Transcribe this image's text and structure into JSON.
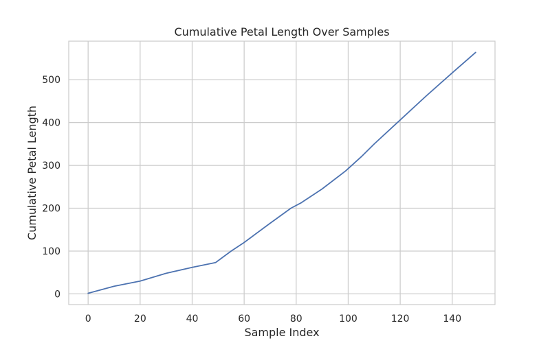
{
  "chart_data": {
    "type": "line",
    "title": "Cumulative Petal Length Over Samples",
    "xlabel": "Sample Index",
    "ylabel": "Cumulative Petal Length",
    "xlim": [
      -7.45,
      156.45
    ],
    "ylim": [
      -25,
      590
    ],
    "x_ticks": [
      0,
      20,
      40,
      60,
      80,
      100,
      120,
      140
    ],
    "y_ticks": [
      0,
      100,
      200,
      300,
      400,
      500
    ],
    "grid": true,
    "colors": {
      "line": "#4c72b0",
      "grid": "#cccccc",
      "axes_edge": "#cccccc",
      "text": "#262626"
    },
    "series": [
      {
        "x": [
          0,
          10,
          20,
          30,
          40,
          49,
          55,
          60,
          70,
          78,
          82,
          90,
          99,
          105,
          110,
          118,
          130,
          140,
          149
        ],
        "y": [
          1.4,
          18,
          30,
          48,
          62,
          73,
          100,
          120,
          165,
          200,
          213,
          245,
          287,
          320,
          350,
          395,
          462,
          516,
          563.7
        ]
      }
    ]
  }
}
